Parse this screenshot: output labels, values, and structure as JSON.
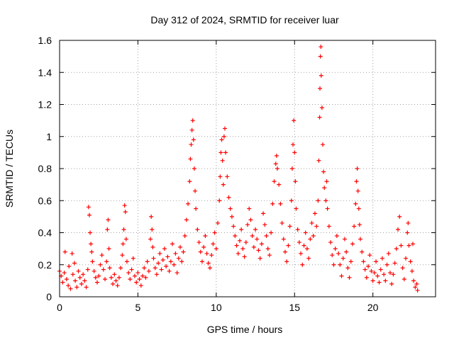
{
  "chart_data": {
    "type": "scatter",
    "title": "Day 312 of 2024, SRMTID for receiver luar",
    "xlabel": "GPS time / hours",
    "ylabel": "SRMTID / TECUs",
    "xlim": [
      0,
      24
    ],
    "ylim": [
      0,
      1.6
    ],
    "xticks": [
      0,
      5,
      10,
      15,
      20
    ],
    "xtick_labels": [
      "0",
      "5",
      "10",
      "15",
      "20"
    ],
    "yticks": [
      0,
      0.2,
      0.4,
      0.6,
      0.8,
      1,
      1.2,
      1.4,
      1.6
    ],
    "ytick_labels": [
      "0",
      "0.2",
      "0.4",
      "0.6",
      "0.8",
      "1",
      "1.2",
      "1.4",
      "1.6"
    ],
    "grid": true,
    "marker": "+",
    "series": [
      {
        "name": "SRMTID",
        "color": "#ff0000",
        "points": [
          [
            0.0,
            0.16
          ],
          [
            0.1,
            0.13
          ],
          [
            0.2,
            0.09
          ],
          [
            0.3,
            0.15
          ],
          [
            0.35,
            0.28
          ],
          [
            0.45,
            0.11
          ],
          [
            0.55,
            0.07
          ],
          [
            0.6,
            0.19
          ],
          [
            0.7,
            0.05
          ],
          [
            0.8,
            0.27
          ],
          [
            0.85,
            0.14
          ],
          [
            0.95,
            0.21
          ],
          [
            1.0,
            0.1
          ],
          [
            1.1,
            0.06
          ],
          [
            1.2,
            0.16
          ],
          [
            1.3,
            0.12
          ],
          [
            1.4,
            0.08
          ],
          [
            1.5,
            0.14
          ],
          [
            1.6,
            0.1
          ],
          [
            1.7,
            0.06
          ],
          [
            1.8,
            0.17
          ],
          [
            1.85,
            0.56
          ],
          [
            1.9,
            0.51
          ],
          [
            1.95,
            0.4
          ],
          [
            2.0,
            0.33
          ],
          [
            2.05,
            0.28
          ],
          [
            2.1,
            0.22
          ],
          [
            2.2,
            0.16
          ],
          [
            2.3,
            0.12
          ],
          [
            2.4,
            0.09
          ],
          [
            2.5,
            0.13
          ],
          [
            2.6,
            0.2
          ],
          [
            2.7,
            0.26
          ],
          [
            2.8,
            0.17
          ],
          [
            2.9,
            0.11
          ],
          [
            3.0,
            0.22
          ],
          [
            3.05,
            0.42
          ],
          [
            3.1,
            0.48
          ],
          [
            3.15,
            0.3
          ],
          [
            3.2,
            0.18
          ],
          [
            3.3,
            0.12
          ],
          [
            3.4,
            0.08
          ],
          [
            3.5,
            0.14
          ],
          [
            3.6,
            0.1
          ],
          [
            3.7,
            0.07
          ],
          [
            3.8,
            0.12
          ],
          [
            3.9,
            0.18
          ],
          [
            4.0,
            0.26
          ],
          [
            4.05,
            0.33
          ],
          [
            4.1,
            0.42
          ],
          [
            4.15,
            0.57
          ],
          [
            4.2,
            0.53
          ],
          [
            4.25,
            0.36
          ],
          [
            4.3,
            0.22
          ],
          [
            4.4,
            0.15
          ],
          [
            4.5,
            0.11
          ],
          [
            4.6,
            0.17
          ],
          [
            4.7,
            0.24
          ],
          [
            4.8,
            0.13
          ],
          [
            4.9,
            0.09
          ],
          [
            5.0,
            0.15
          ],
          [
            5.1,
            0.11
          ],
          [
            5.2,
            0.07
          ],
          [
            5.3,
            0.13
          ],
          [
            5.4,
            0.18
          ],
          [
            5.5,
            0.12
          ],
          [
            5.6,
            0.22
          ],
          [
            5.7,
            0.16
          ],
          [
            5.8,
            0.36
          ],
          [
            5.85,
            0.5
          ],
          [
            5.9,
            0.42
          ],
          [
            5.95,
            0.31
          ],
          [
            6.0,
            0.24
          ],
          [
            6.1,
            0.18
          ],
          [
            6.2,
            0.14
          ],
          [
            6.3,
            0.21
          ],
          [
            6.4,
            0.27
          ],
          [
            6.5,
            0.17
          ],
          [
            6.6,
            0.23
          ],
          [
            6.7,
            0.3
          ],
          [
            6.8,
            0.19
          ],
          [
            6.9,
            0.25
          ],
          [
            7.0,
            0.16
          ],
          [
            7.1,
            0.22
          ],
          [
            7.2,
            0.33
          ],
          [
            7.3,
            0.2
          ],
          [
            7.4,
            0.27
          ],
          [
            7.5,
            0.15
          ],
          [
            7.6,
            0.24
          ],
          [
            7.7,
            0.31
          ],
          [
            7.8,
            0.22
          ],
          [
            7.9,
            0.28
          ],
          [
            8.0,
            0.38
          ],
          [
            8.1,
            0.48
          ],
          [
            8.2,
            0.58
          ],
          [
            8.3,
            0.72
          ],
          [
            8.35,
            0.86
          ],
          [
            8.4,
            0.95
          ],
          [
            8.45,
            1.04
          ],
          [
            8.5,
            1.1
          ],
          [
            8.55,
            0.98
          ],
          [
            8.6,
            0.8
          ],
          [
            8.65,
            0.66
          ],
          [
            8.7,
            0.55
          ],
          [
            8.8,
            0.42
          ],
          [
            8.9,
            0.34
          ],
          [
            9.0,
            0.28
          ],
          [
            9.1,
            0.22
          ],
          [
            9.2,
            0.31
          ],
          [
            9.3,
            0.38
          ],
          [
            9.4,
            0.27
          ],
          [
            9.5,
            0.21
          ],
          [
            9.6,
            0.18
          ],
          [
            9.7,
            0.26
          ],
          [
            9.8,
            0.33
          ],
          [
            9.9,
            0.4
          ],
          [
            10.0,
            0.3
          ],
          [
            10.1,
            0.46
          ],
          [
            10.2,
            0.6
          ],
          [
            10.25,
            0.75
          ],
          [
            10.3,
            0.9
          ],
          [
            10.35,
            0.98
          ],
          [
            10.4,
            0.85
          ],
          [
            10.45,
            0.7
          ],
          [
            10.5,
            1.0
          ],
          [
            10.55,
            1.05
          ],
          [
            10.6,
            0.9
          ],
          [
            10.7,
            0.75
          ],
          [
            10.8,
            0.62
          ],
          [
            10.9,
            0.55
          ],
          [
            11.0,
            0.5
          ],
          [
            11.1,
            0.44
          ],
          [
            11.2,
            0.38
          ],
          [
            11.3,
            0.32
          ],
          [
            11.4,
            0.27
          ],
          [
            11.5,
            0.35
          ],
          [
            11.6,
            0.42
          ],
          [
            11.7,
            0.3
          ],
          [
            11.8,
            0.25
          ],
          [
            11.9,
            0.34
          ],
          [
            12.0,
            0.45
          ],
          [
            12.1,
            0.55
          ],
          [
            12.2,
            0.48
          ],
          [
            12.3,
            0.38
          ],
          [
            12.4,
            0.31
          ],
          [
            12.5,
            0.42
          ],
          [
            12.6,
            0.36
          ],
          [
            12.7,
            0.29
          ],
          [
            12.8,
            0.24
          ],
          [
            12.9,
            0.33
          ],
          [
            13.0,
            0.52
          ],
          [
            13.1,
            0.45
          ],
          [
            13.2,
            0.38
          ],
          [
            13.3,
            0.3
          ],
          [
            13.4,
            0.26
          ],
          [
            13.5,
            0.4
          ],
          [
            13.6,
            0.58
          ],
          [
            13.7,
            0.72
          ],
          [
            13.8,
            0.83
          ],
          [
            13.85,
            0.88
          ],
          [
            13.9,
            0.8
          ],
          [
            14.0,
            0.7
          ],
          [
            14.1,
            0.58
          ],
          [
            14.2,
            0.46
          ],
          [
            14.3,
            0.36
          ],
          [
            14.4,
            0.28
          ],
          [
            14.5,
            0.22
          ],
          [
            14.6,
            0.32
          ],
          [
            14.7,
            0.44
          ],
          [
            14.8,
            0.6
          ],
          [
            14.85,
            0.8
          ],
          [
            14.9,
            0.95
          ],
          [
            14.95,
            1.1
          ],
          [
            15.0,
            0.9
          ],
          [
            15.05,
            0.72
          ],
          [
            15.1,
            0.55
          ],
          [
            15.2,
            0.42
          ],
          [
            15.3,
            0.34
          ],
          [
            15.4,
            0.27
          ],
          [
            15.5,
            0.2
          ],
          [
            15.6,
            0.32
          ],
          [
            15.7,
            0.4
          ],
          [
            15.8,
            0.3
          ],
          [
            15.9,
            0.24
          ],
          [
            16.0,
            0.36
          ],
          [
            16.1,
            0.46
          ],
          [
            16.2,
            0.38
          ],
          [
            16.3,
            0.52
          ],
          [
            16.4,
            0.44
          ],
          [
            16.5,
            0.6
          ],
          [
            16.55,
            0.85
          ],
          [
            16.6,
            1.12
          ],
          [
            16.62,
            1.3
          ],
          [
            16.65,
            1.5
          ],
          [
            16.68,
            1.56
          ],
          [
            16.7,
            1.38
          ],
          [
            16.75,
            1.18
          ],
          [
            16.8,
            0.95
          ],
          [
            16.85,
            0.78
          ],
          [
            16.9,
            0.68
          ],
          [
            17.0,
            0.6
          ],
          [
            17.05,
            0.72
          ],
          [
            17.1,
            0.55
          ],
          [
            17.2,
            0.44
          ],
          [
            17.3,
            0.34
          ],
          [
            17.4,
            0.26
          ],
          [
            17.5,
            0.2
          ],
          [
            17.6,
            0.3
          ],
          [
            17.7,
            0.38
          ],
          [
            17.8,
            0.27
          ],
          [
            17.9,
            0.2
          ],
          [
            18.0,
            0.13
          ],
          [
            18.1,
            0.24
          ],
          [
            18.2,
            0.36
          ],
          [
            18.3,
            0.28
          ],
          [
            18.4,
            0.18
          ],
          [
            18.5,
            0.12
          ],
          [
            18.6,
            0.22
          ],
          [
            18.7,
            0.33
          ],
          [
            18.8,
            0.44
          ],
          [
            18.9,
            0.58
          ],
          [
            18.95,
            0.72
          ],
          [
            19.0,
            0.8
          ],
          [
            19.05,
            0.66
          ],
          [
            19.1,
            0.55
          ],
          [
            19.15,
            0.45
          ],
          [
            19.2,
            0.36
          ],
          [
            19.3,
            0.28
          ],
          [
            19.4,
            0.22
          ],
          [
            19.5,
            0.17
          ],
          [
            19.6,
            0.12
          ],
          [
            19.7,
            0.19
          ],
          [
            19.8,
            0.26
          ],
          [
            19.9,
            0.16
          ],
          [
            20.0,
            0.1
          ],
          [
            20.1,
            0.15
          ],
          [
            20.2,
            0.22
          ],
          [
            20.3,
            0.13
          ],
          [
            20.4,
            0.09
          ],
          [
            20.5,
            0.17
          ],
          [
            20.6,
            0.24
          ],
          [
            20.7,
            0.14
          ],
          [
            20.8,
            0.1
          ],
          [
            20.9,
            0.2
          ],
          [
            21.0,
            0.27
          ],
          [
            21.1,
            0.15
          ],
          [
            21.2,
            0.08
          ],
          [
            21.3,
            0.14
          ],
          [
            21.4,
            0.21
          ],
          [
            21.5,
            0.3
          ],
          [
            21.6,
            0.42
          ],
          [
            21.7,
            0.5
          ],
          [
            21.8,
            0.32
          ],
          [
            21.9,
            0.18
          ],
          [
            22.0,
            0.11
          ],
          [
            22.1,
            0.24
          ],
          [
            22.2,
            0.4
          ],
          [
            22.25,
            0.46
          ],
          [
            22.3,
            0.32
          ],
          [
            22.4,
            0.22
          ],
          [
            22.5,
            0.16
          ],
          [
            22.55,
            0.33
          ],
          [
            22.6,
            0.1
          ],
          [
            22.7,
            0.06
          ],
          [
            22.8,
            0.08
          ],
          [
            22.85,
            0.04
          ]
        ]
      }
    ]
  }
}
